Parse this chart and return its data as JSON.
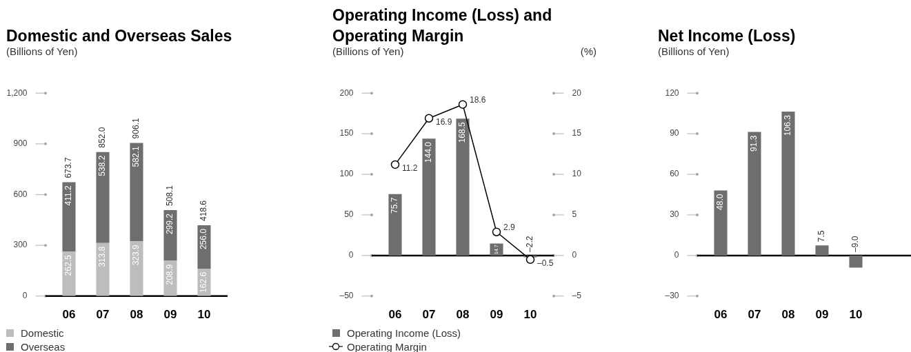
{
  "chart_data": [
    {
      "type": "bar",
      "title": "Domestic and Overseas Sales",
      "ylabel": "(Billions of Yen)",
      "categories": [
        "06",
        "07",
        "08",
        "09",
        "10"
      ],
      "stacked": true,
      "series": [
        {
          "name": "Domestic",
          "color": "#bdbdbd",
          "values": [
            262.5,
            313.8,
            323.9,
            208.9,
            162.6
          ],
          "value_labels": [
            "262.5",
            "313.8",
            "323.9",
            "208.9",
            "162.6"
          ]
        },
        {
          "name": "Overseas",
          "color": "#6e6e6e",
          "values": [
            411.2,
            538.2,
            582.1,
            299.2,
            256.0
          ],
          "value_labels": [
            "411.2",
            "538.2",
            "582.1",
            "299.2",
            "256.0"
          ]
        }
      ],
      "totals": [
        "673.7",
        "852.0",
        "906.1",
        "508.1",
        "418.6"
      ],
      "ylim": [
        0,
        1200
      ],
      "yticks": [
        0,
        300,
        600,
        900,
        {
          "value": 1200,
          "label": "1,200"
        }
      ],
      "legend": "bottom left"
    },
    {
      "type": "bar",
      "title": "Operating Income (Loss) and Operating Margin",
      "ylabel": "(Billions of Yen)",
      "y2label": "(%)",
      "categories": [
        "06",
        "07",
        "08",
        "09",
        "10"
      ],
      "series": [
        {
          "name": "Operating Income (Loss)",
          "color": "#6e6e6e",
          "values": [
            75.7,
            144.0,
            168.5,
            14.7,
            -2.2
          ],
          "value_labels": [
            "75.7",
            "144.0",
            "168.5",
            "14.7",
            "–2.2"
          ]
        },
        {
          "name": "Operating Margin",
          "type": "line",
          "axis": "y2",
          "color": "#000000",
          "values": [
            11.2,
            16.9,
            18.6,
            2.9,
            -0.5
          ],
          "value_labels": [
            "11.2",
            "16.9",
            "18.6",
            "2.9",
            "–0.5"
          ]
        }
      ],
      "ylim": [
        -50,
        200
      ],
      "yticks": [
        {
          "value": -50,
          "label": "–50"
        },
        0,
        50,
        100,
        150,
        200
      ],
      "y2lim": [
        -5,
        20
      ],
      "y2ticks": [
        {
          "value": -5,
          "label": "–5"
        },
        0,
        5,
        10,
        15,
        20
      ],
      "marker": "circle",
      "legend": "bottom left"
    },
    {
      "type": "bar",
      "title": "Net Income (Loss)",
      "ylabel": "(Billions of Yen)",
      "categories": [
        "06",
        "07",
        "08",
        "09",
        "10"
      ],
      "values": [
        48.0,
        91.3,
        106.3,
        7.5,
        -9.0
      ],
      "color": "#6e6e6e",
      "value_labels": [
        "48.0",
        "91.3",
        "106.3",
        "7.5",
        "–9.0"
      ],
      "ylim": [
        -30,
        120
      ],
      "yticks": [
        {
          "value": -30,
          "label": "–30"
        },
        0,
        30,
        60,
        90,
        120
      ]
    }
  ]
}
